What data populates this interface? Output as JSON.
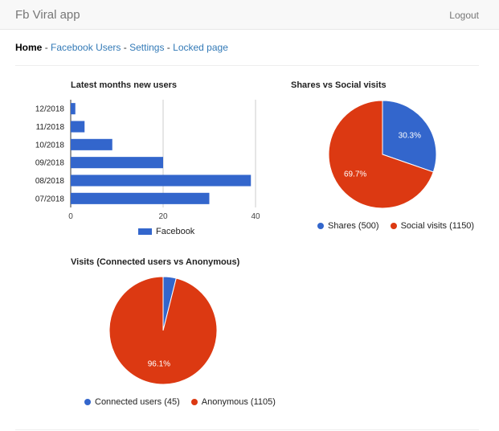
{
  "navbar": {
    "brand": "Fb Viral app",
    "logout": "Logout"
  },
  "breadcrumb": {
    "home": "Home",
    "separator": "-",
    "links": [
      "Facebook Users",
      "Settings",
      "Locked page"
    ]
  },
  "colors": {
    "blue": "#3366cc",
    "red": "#dc3912",
    "grid": "#cccccc"
  },
  "chart_data": [
    {
      "type": "bar",
      "orientation": "horizontal",
      "title": "Latest months new users",
      "categories": [
        "12/2018",
        "11/2018",
        "10/2018",
        "09/2018",
        "08/2018",
        "07/2018"
      ],
      "series": [
        {
          "name": "Facebook",
          "values": [
            1,
            3,
            9,
            20,
            39,
            30
          ]
        }
      ],
      "xlim": [
        0,
        40
      ],
      "xticks": [
        "0",
        "20",
        "40"
      ],
      "legend": "bottom"
    },
    {
      "type": "pie",
      "title": "Shares vs Social visits",
      "slices": [
        {
          "label": "Shares (500)",
          "value": 500,
          "percent_label": "30.3%"
        },
        {
          "label": "Social visits (1150)",
          "value": 1150,
          "percent_label": "69.7%"
        }
      ],
      "legend": "bottom"
    },
    {
      "type": "pie",
      "title": "Visits (Connected users vs Anonymous)",
      "slices": [
        {
          "label": "Connected users (45)",
          "value": 45,
          "percent_label": ""
        },
        {
          "label": "Anonymous (1105)",
          "value": 1105,
          "percent_label": "96.1%"
        }
      ],
      "legend": "bottom"
    }
  ]
}
